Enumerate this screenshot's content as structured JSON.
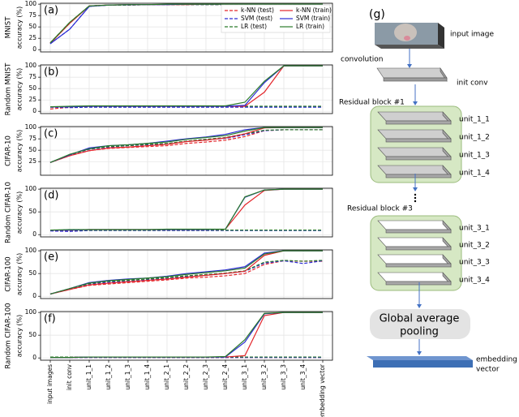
{
  "chart_data": [
    {
      "type": "line",
      "panel": "(a)",
      "dataset": "MNIST",
      "ylabel": "accuracy (%)",
      "ylim": [
        -5,
        102
      ],
      "yticks": [
        0,
        25,
        50,
        75,
        100
      ],
      "grid": true,
      "legend": "upper right",
      "series": [
        {
          "name": "k-NN (test)",
          "color": "#e3262b",
          "style": "dashed",
          "values": [
            14,
            58,
            96,
            98,
            98,
            99,
            99,
            99,
            99,
            99,
            99,
            99,
            99,
            99,
            99
          ]
        },
        {
          "name": "SVM (test)",
          "color": "#2b2bd4",
          "style": "dashed",
          "values": [
            13,
            45,
            95,
            98,
            98,
            99,
            99,
            99,
            99,
            99,
            99,
            99,
            99,
            99,
            99
          ]
        },
        {
          "name": "LR (test)",
          "color": "#2b7a2b",
          "style": "dashed",
          "values": [
            15,
            60,
            96,
            98,
            98,
            99,
            99,
            99,
            99,
            99,
            99,
            99,
            99,
            99,
            99
          ]
        },
        {
          "name": "k-NN (train)",
          "color": "#e3262b",
          "style": "solid",
          "values": [
            14,
            58,
            96,
            98,
            99,
            99,
            99,
            99,
            100,
            100,
            100,
            100,
            100,
            100,
            100
          ]
        },
        {
          "name": "SVM (train)",
          "color": "#2b2bd4",
          "style": "solid",
          "values": [
            13,
            45,
            95,
            98,
            99,
            99,
            99,
            100,
            100,
            100,
            100,
            100,
            100,
            100,
            100
          ]
        },
        {
          "name": "LR (train)",
          "color": "#2b7a2b",
          "style": "solid",
          "values": [
            15,
            60,
            96,
            98,
            99,
            99,
            100,
            100,
            100,
            100,
            100,
            100,
            100,
            100,
            100
          ]
        }
      ]
    },
    {
      "type": "line",
      "panel": "(b)",
      "dataset": "Random MNIST",
      "ylabel": "accuracy (%)",
      "ylim": [
        -5,
        102
      ],
      "yticks": [
        0,
        25,
        50,
        75,
        100
      ],
      "grid": true,
      "series": [
        {
          "color": "#e3262b",
          "style": "dashed",
          "values": [
            5,
            9,
            10,
            10,
            10,
            10,
            10,
            10,
            10,
            10,
            10,
            10,
            10,
            10,
            10
          ]
        },
        {
          "color": "#2b2bd4",
          "style": "dashed",
          "values": [
            9,
            8,
            9,
            9,
            9,
            9,
            9,
            9,
            9,
            9,
            9,
            9,
            9,
            9,
            9
          ]
        },
        {
          "color": "#2b7a2b",
          "style": "dashed",
          "values": [
            10,
            10,
            11,
            11,
            11,
            11,
            11,
            11,
            11,
            11,
            11,
            11,
            11,
            11,
            11
          ]
        },
        {
          "color": "#e3262b",
          "style": "solid",
          "values": [
            10,
            10,
            11,
            11,
            11,
            11,
            11,
            11,
            11,
            11,
            11,
            42,
            100,
            100,
            100
          ]
        },
        {
          "color": "#2b2bd4",
          "style": "solid",
          "values": [
            10,
            10,
            11,
            11,
            11,
            11,
            11,
            11,
            11,
            11,
            13,
            63,
            100,
            100,
            100
          ]
        },
        {
          "color": "#2b7a2b",
          "style": "solid",
          "values": [
            10,
            11,
            12,
            12,
            12,
            12,
            12,
            12,
            12,
            12,
            20,
            66,
            100,
            100,
            100
          ]
        }
      ]
    },
    {
      "type": "line",
      "panel": "(c)",
      "dataset": "CIFAR-10",
      "ylabel": "accuracy (%)",
      "ylim": [
        -5,
        102
      ],
      "yticks": [
        25,
        50,
        75,
        100
      ],
      "grid": true,
      "series": [
        {
          "color": "#e3262b",
          "style": "dashed",
          "values": [
            23,
            38,
            49,
            54,
            56,
            58,
            60,
            65,
            68,
            72,
            80,
            93,
            95,
            95,
            95
          ]
        },
        {
          "color": "#2b2bd4",
          "style": "dashed",
          "values": [
            23,
            40,
            52,
            57,
            60,
            62,
            64,
            70,
            73,
            76,
            84,
            93,
            95,
            95,
            95
          ]
        },
        {
          "color": "#2b7a2b",
          "style": "dashed",
          "values": [
            23,
            40,
            53,
            58,
            60,
            63,
            65,
            70,
            74,
            78,
            86,
            94,
            95,
            95,
            95
          ]
        },
        {
          "color": "#e3262b",
          "style": "solid",
          "values": [
            23,
            38,
            49,
            55,
            57,
            60,
            63,
            69,
            72,
            77,
            86,
            99,
            100,
            100,
            100
          ]
        },
        {
          "color": "#2b2bd4",
          "style": "solid",
          "values": [
            23,
            40,
            55,
            60,
            62,
            65,
            70,
            75,
            79,
            85,
            95,
            100,
            100,
            100,
            100
          ]
        },
        {
          "color": "#2b7a2b",
          "style": "solid",
          "values": [
            23,
            41,
            53,
            60,
            62,
            65,
            68,
            74,
            78,
            82,
            92,
            100,
            100,
            100,
            100
          ]
        }
      ]
    },
    {
      "type": "line",
      "panel": "(d)",
      "dataset": "Random CIFAR-10",
      "ylabel": "accuracy (%)",
      "ylim": [
        -5,
        102
      ],
      "yticks": [
        0,
        50,
        100
      ],
      "grid": true,
      "series": [
        {
          "color": "#e3262b",
          "style": "dashed",
          "values": [
            9,
            9,
            10,
            10,
            10,
            10,
            10,
            10,
            10,
            10,
            10,
            10,
            10,
            10,
            10
          ]
        },
        {
          "color": "#2b2bd4",
          "style": "dashed",
          "values": [
            8,
            7,
            9,
            9,
            9,
            9,
            9,
            9,
            9,
            9,
            9,
            9,
            9,
            9,
            9
          ]
        },
        {
          "color": "#2b7a2b",
          "style": "dashed",
          "values": [
            10,
            10,
            10,
            10,
            10,
            10,
            10,
            10,
            10,
            10,
            10,
            10,
            10,
            10,
            10
          ]
        },
        {
          "color": "#e3262b",
          "style": "solid",
          "values": [
            10,
            10,
            11,
            11,
            11,
            11,
            11,
            11,
            11,
            12,
            65,
            97,
            100,
            100,
            100
          ]
        },
        {
          "color": "#2b2bd4",
          "style": "solid",
          "values": [
            10,
            10,
            11,
            11,
            11,
            11,
            11,
            11,
            11,
            12,
            82,
            98,
            100,
            100,
            100
          ]
        },
        {
          "color": "#2b7a2b",
          "style": "solid",
          "values": [
            10,
            11,
            11,
            11,
            11,
            11,
            12,
            12,
            12,
            12,
            83,
            98,
            100,
            100,
            100
          ]
        }
      ]
    },
    {
      "type": "line",
      "panel": "(e)",
      "dataset": "CIFAR-100",
      "ylabel": "accuracy (%)",
      "ylim": [
        -5,
        102
      ],
      "yticks": [
        0,
        50,
        100
      ],
      "grid": true,
      "series": [
        {
          "color": "#e3262b",
          "style": "dashed",
          "values": [
            5,
            15,
            24,
            27,
            30,
            33,
            36,
            40,
            42,
            45,
            50,
            70,
            78,
            77,
            77
          ]
        },
        {
          "color": "#2b2bd4",
          "style": "dashed",
          "values": [
            5,
            16,
            27,
            31,
            33,
            36,
            39,
            43,
            46,
            50,
            55,
            73,
            78,
            72,
            78
          ]
        },
        {
          "color": "#2b7a2b",
          "style": "dashed",
          "values": [
            5,
            17,
            28,
            33,
            35,
            38,
            41,
            45,
            48,
            51,
            56,
            75,
            79,
            77,
            79
          ]
        },
        {
          "color": "#e3262b",
          "style": "solid",
          "values": [
            5,
            15,
            25,
            29,
            32,
            35,
            38,
            42,
            46,
            50,
            55,
            90,
            100,
            100,
            100
          ]
        },
        {
          "color": "#2b2bd4",
          "style": "solid",
          "values": [
            5,
            17,
            30,
            35,
            38,
            40,
            44,
            50,
            54,
            58,
            65,
            95,
            100,
            100,
            100
          ]
        },
        {
          "color": "#2b7a2b",
          "style": "solid",
          "values": [
            5,
            17,
            29,
            34,
            37,
            40,
            43,
            48,
            52,
            56,
            62,
            93,
            100,
            100,
            100
          ]
        }
      ]
    },
    {
      "type": "line",
      "panel": "(f)",
      "dataset": "Random CIFAR-100",
      "ylabel": "accuracy (%)",
      "ylim": [
        -5,
        102
      ],
      "yticks": [
        0,
        50,
        100
      ],
      "grid": true,
      "categories": [
        "input images",
        "init conv",
        "unit_1_1",
        "unit_1_2",
        "unit_1_3",
        "unit_1_4",
        "unit_2_1",
        "unit_2_2",
        "unit_2_3",
        "unit_2_4",
        "unit_3_1",
        "unit_3_2",
        "unit_3_3",
        "unit_3_4",
        "embedding vector"
      ],
      "series": [
        {
          "color": "#e3262b",
          "style": "dashed",
          "values": [
            1,
            1,
            1,
            1,
            1,
            1,
            1,
            1,
            1,
            1,
            1,
            1,
            1,
            1,
            1
          ]
        },
        {
          "color": "#2b2bd4",
          "style": "dashed",
          "values": [
            1,
            1,
            1,
            1,
            1,
            1,
            1,
            1,
            1,
            1,
            1,
            1,
            1,
            1,
            1
          ]
        },
        {
          "color": "#2b7a2b",
          "style": "dashed",
          "values": [
            2,
            2,
            2,
            2,
            2,
            2,
            2,
            2,
            2,
            2,
            2,
            2,
            2,
            2,
            2
          ]
        },
        {
          "color": "#e3262b",
          "style": "solid",
          "values": [
            1,
            1,
            2,
            2,
            2,
            2,
            2,
            2,
            2,
            2,
            5,
            93,
            100,
            100,
            100
          ]
        },
        {
          "color": "#2b2bd4",
          "style": "solid",
          "values": [
            1,
            1,
            2,
            2,
            2,
            2,
            2,
            2,
            2,
            2,
            35,
            97,
            100,
            100,
            100
          ]
        },
        {
          "color": "#2b7a2b",
          "style": "solid",
          "values": [
            1,
            1,
            2,
            2,
            2,
            2,
            2,
            2,
            2,
            3,
            40,
            98,
            100,
            100,
            100
          ]
        }
      ]
    }
  ],
  "diagram": {
    "panel": "(g)",
    "input": "input image",
    "conv": "convolution",
    "init": "init conv",
    "block1": {
      "title": "Residual block #1",
      "units": [
        "unit_1_1",
        "unit_1_2",
        "unit_1_3",
        "unit_1_4"
      ]
    },
    "block3": {
      "title": "Residual block #3",
      "units": [
        "unit_3_1",
        "unit_3_2",
        "unit_3_3",
        "unit_3_4"
      ]
    },
    "pooling": [
      "Global average",
      "pooling"
    ],
    "embedding": [
      "embedding",
      "vector"
    ]
  }
}
